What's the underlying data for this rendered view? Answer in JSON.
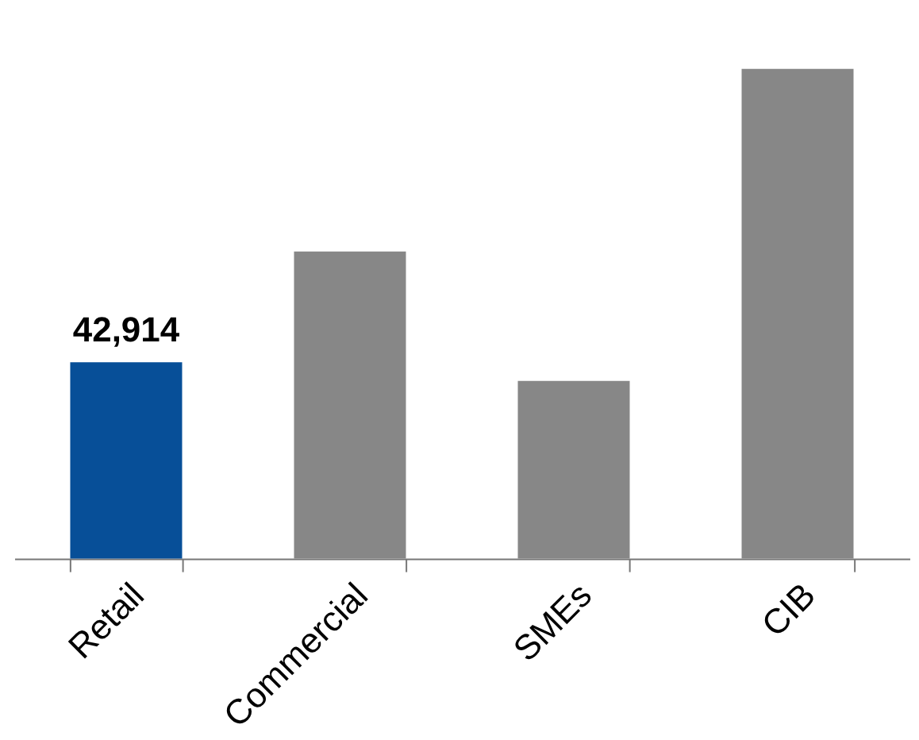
{
  "chart_data": {
    "type": "bar",
    "categories": [
      "Retail",
      "Commercial",
      "SMEs",
      "CIB"
    ],
    "values": [
      42914,
      67100,
      38800,
      107000
    ],
    "colors": [
      "#074f98",
      "#878787",
      "#878787",
      "#878787"
    ],
    "value_labels": [
      "42,914",
      null,
      null,
      null
    ],
    "ylim": [
      0,
      107000
    ],
    "tick_labels": "x",
    "grid": false
  }
}
